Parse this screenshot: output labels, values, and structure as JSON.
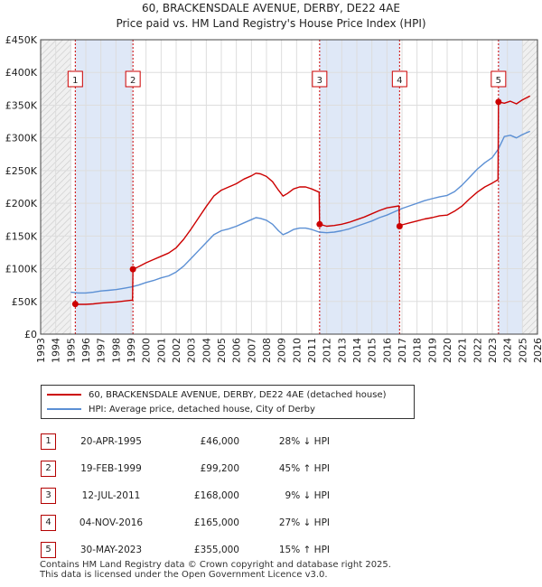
{
  "title_line1": "60, BRACKENSDALE AVENUE, DERBY, DE22 4AE",
  "title_line2": "Price paid vs. HM Land Registry's House Price Index (HPI)",
  "colors": {
    "property": "#cc0000",
    "hpi": "#5b8fd4",
    "band": "#dfe8f7",
    "grid": "#dddddd",
    "marker": "#cc0000"
  },
  "legend": {
    "property": "60, BRACKENSDALE AVENUE, DERBY, DE22 4AE (detached house)",
    "hpi": "HPI: Average price, detached house, City of Derby"
  },
  "sales": [
    {
      "num": "1",
      "date": "20-APR-1995",
      "price": "£46,000",
      "hpi": "28% ↓ HPI",
      "t": 1995.3,
      "value": 46000
    },
    {
      "num": "2",
      "date": "19-FEB-1999",
      "price": "£99,200",
      "hpi": "45% ↑ HPI",
      "t": 1999.13,
      "value": 99200
    },
    {
      "num": "3",
      "date": "12-JUL-2011",
      "price": "£168,000",
      "hpi": "9% ↓ HPI",
      "t": 2011.53,
      "value": 168000
    },
    {
      "num": "4",
      "date": "04-NOV-2016",
      "price": "£165,000",
      "hpi": "27% ↓ HPI",
      "t": 2016.84,
      "value": 165000
    },
    {
      "num": "5",
      "date": "30-MAY-2023",
      "price": "£355,000",
      "hpi": "15% ↑ HPI",
      "t": 2023.41,
      "value": 355000
    }
  ],
  "footer_line1": "Contains HM Land Registry data © Crown copyright and database right 2025.",
  "footer_line2": "This data is licensed under the Open Government Licence v3.0.",
  "chart_data": {
    "type": "line",
    "x_range": [
      1993,
      2026
    ],
    "y_range": [
      0,
      450000
    ],
    "y_ticks": [
      0,
      50000,
      100000,
      150000,
      200000,
      250000,
      300000,
      350000,
      400000,
      450000
    ],
    "y_tick_labels": [
      "£0",
      "£50K",
      "£100K",
      "£150K",
      "£200K",
      "£250K",
      "£300K",
      "£350K",
      "£400K",
      "£450K"
    ],
    "x_ticks": [
      "1993",
      "1994",
      "1995",
      "1996",
      "1997",
      "1998",
      "1999",
      "2000",
      "2001",
      "2002",
      "2003",
      "2004",
      "2005",
      "2006",
      "2007",
      "2008",
      "2009",
      "2010",
      "2011",
      "2012",
      "2013",
      "2014",
      "2015",
      "2016",
      "2017",
      "2018",
      "2019",
      "2020",
      "2021",
      "2022",
      "2023",
      "2024",
      "2025",
      "2026"
    ],
    "shaded_bands": [
      [
        1995.3,
        1999.13
      ],
      [
        2011.53,
        2016.84
      ],
      [
        2023.41,
        2026
      ]
    ],
    "hatched_regions": [
      [
        1993,
        1995.0
      ],
      [
        2025.0,
        2026
      ]
    ],
    "series": [
      {
        "name": "hpi",
        "points": [
          [
            1995.0,
            64000
          ],
          [
            1995.5,
            63000
          ],
          [
            1996,
            63000
          ],
          [
            1996.5,
            64000
          ],
          [
            1997,
            66000
          ],
          [
            1997.5,
            67000
          ],
          [
            1998,
            68000
          ],
          [
            1998.5,
            70000
          ],
          [
            1999,
            72000
          ],
          [
            1999.5,
            75000
          ],
          [
            2000,
            79000
          ],
          [
            2000.5,
            82000
          ],
          [
            2001,
            86000
          ],
          [
            2001.5,
            89000
          ],
          [
            2002,
            95000
          ],
          [
            2002.5,
            104000
          ],
          [
            2003,
            116000
          ],
          [
            2003.5,
            128000
          ],
          [
            2004,
            140000
          ],
          [
            2004.5,
            152000
          ],
          [
            2005,
            158000
          ],
          [
            2005.5,
            161000
          ],
          [
            2006,
            165000
          ],
          [
            2006.5,
            170000
          ],
          [
            2007,
            175000
          ],
          [
            2007.3,
            178000
          ],
          [
            2007.6,
            177000
          ],
          [
            2008,
            174000
          ],
          [
            2008.4,
            168000
          ],
          [
            2008.8,
            158000
          ],
          [
            2009.1,
            152000
          ],
          [
            2009.4,
            155000
          ],
          [
            2009.8,
            160000
          ],
          [
            2010.2,
            162000
          ],
          [
            2010.6,
            162000
          ],
          [
            2011,
            160000
          ],
          [
            2011.5,
            156000
          ],
          [
            2012,
            155000
          ],
          [
            2012.5,
            156000
          ],
          [
            2013,
            158000
          ],
          [
            2013.5,
            161000
          ],
          [
            2014,
            165000
          ],
          [
            2014.5,
            169000
          ],
          [
            2015,
            173000
          ],
          [
            2015.5,
            178000
          ],
          [
            2016,
            182000
          ],
          [
            2016.5,
            187000
          ],
          [
            2017,
            192000
          ],
          [
            2017.5,
            196000
          ],
          [
            2018,
            200000
          ],
          [
            2018.5,
            204000
          ],
          [
            2019,
            207000
          ],
          [
            2019.5,
            210000
          ],
          [
            2020,
            212000
          ],
          [
            2020.5,
            218000
          ],
          [
            2021,
            228000
          ],
          [
            2021.5,
            240000
          ],
          [
            2022,
            252000
          ],
          [
            2022.5,
            262000
          ],
          [
            2023,
            270000
          ],
          [
            2023.4,
            283000
          ],
          [
            2023.8,
            302000
          ],
          [
            2024.2,
            304000
          ],
          [
            2024.6,
            300000
          ],
          [
            2025.0,
            305000
          ],
          [
            2025.5,
            310000
          ]
        ]
      },
      {
        "name": "property",
        "points": [
          [
            1995.3,
            46000
          ],
          [
            1995.5,
            45500
          ],
          [
            1996,
            45500
          ],
          [
            1996.5,
            46200
          ],
          [
            1997,
            47500
          ],
          [
            1997.5,
            48500
          ],
          [
            1998,
            49200
          ],
          [
            1998.5,
            50500
          ],
          [
            1999.1,
            52000
          ],
          [
            1999.13,
            99200
          ],
          [
            1999.5,
            103000
          ],
          [
            2000,
            109000
          ],
          [
            2000.5,
            114000
          ],
          [
            2001,
            119000
          ],
          [
            2001.5,
            124000
          ],
          [
            2002,
            132000
          ],
          [
            2002.5,
            145000
          ],
          [
            2003,
            161000
          ],
          [
            2003.5,
            178000
          ],
          [
            2004,
            195000
          ],
          [
            2004.5,
            211000
          ],
          [
            2005,
            220000
          ],
          [
            2005.5,
            225000
          ],
          [
            2006,
            230000
          ],
          [
            2006.5,
            237000
          ],
          [
            2007,
            242000
          ],
          [
            2007.3,
            246000
          ],
          [
            2007.6,
            245000
          ],
          [
            2008,
            241000
          ],
          [
            2008.4,
            233000
          ],
          [
            2008.8,
            220000
          ],
          [
            2009.1,
            211000
          ],
          [
            2009.4,
            215000
          ],
          [
            2009.8,
            222000
          ],
          [
            2010.2,
            225000
          ],
          [
            2010.6,
            225000
          ],
          [
            2011,
            222000
          ],
          [
            2011.5,
            217000
          ],
          [
            2011.53,
            168000
          ],
          [
            2012,
            165000
          ],
          [
            2012.5,
            166000
          ],
          [
            2013,
            168000
          ],
          [
            2013.5,
            171000
          ],
          [
            2014,
            175000
          ],
          [
            2014.5,
            179000
          ],
          [
            2015,
            184000
          ],
          [
            2015.5,
            189000
          ],
          [
            2016,
            193000
          ],
          [
            2016.8,
            196000
          ],
          [
            2016.84,
            165000
          ],
          [
            2017,
            167000
          ],
          [
            2017.5,
            170000
          ],
          [
            2018,
            173000
          ],
          [
            2018.5,
            176000
          ],
          [
            2019,
            178000
          ],
          [
            2019.5,
            181000
          ],
          [
            2020,
            182000
          ],
          [
            2020.5,
            188000
          ],
          [
            2021,
            196000
          ],
          [
            2021.5,
            207000
          ],
          [
            2022,
            217000
          ],
          [
            2022.5,
            225000
          ],
          [
            2023,
            231000
          ],
          [
            2023.38,
            236000
          ],
          [
            2023.41,
            355000
          ],
          [
            2023.8,
            353000
          ],
          [
            2024.2,
            356000
          ],
          [
            2024.6,
            352000
          ],
          [
            2025.0,
            358000
          ],
          [
            2025.5,
            364000
          ]
        ]
      }
    ],
    "markers": [
      {
        "label": "1",
        "t": 1995.3,
        "value": 46000
      },
      {
        "label": "2",
        "t": 1999.13,
        "value": 99200
      },
      {
        "label": "3",
        "t": 2011.53,
        "value": 168000
      },
      {
        "label": "4",
        "t": 2016.84,
        "value": 165000
      },
      {
        "label": "5",
        "t": 2023.41,
        "value": 355000
      }
    ]
  }
}
